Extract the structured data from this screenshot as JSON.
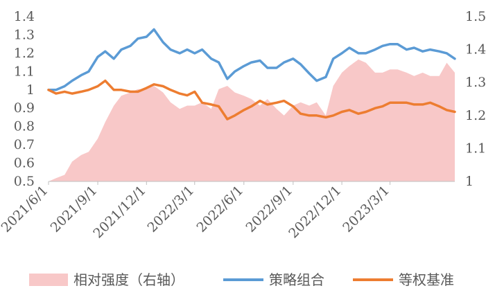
{
  "chart_data": {
    "type": "line",
    "title": "",
    "left_axis": {
      "min": 0.5,
      "max": 1.4,
      "ticks": [
        0.5,
        0.6,
        0.7,
        0.8,
        0.9,
        1,
        1.1,
        1.2,
        1.3,
        1.4
      ]
    },
    "right_axis": {
      "min": 1.0,
      "max": 1.5,
      "ticks": [
        1,
        1.1,
        1.2,
        1.3,
        1.4,
        1.5
      ]
    },
    "x_ticks": [
      "2021/6/1",
      "2021/9/1",
      "2021/12/1",
      "2022/3/1",
      "2022/6/1",
      "2022/9/1",
      "2022/12/1",
      "2023/3/1"
    ],
    "x_range": [
      "2021-06-01",
      "2023-06-30"
    ],
    "grid": false,
    "legend_position": "bottom",
    "series": [
      {
        "name": "相对强度（右轴）",
        "type": "area",
        "axis": "right",
        "color": "#F8C8C8",
        "x": [
          "2021-06-01",
          "2021-06-15",
          "2021-07-01",
          "2021-07-15",
          "2021-08-01",
          "2021-08-15",
          "2021-09-01",
          "2021-09-15",
          "2021-10-01",
          "2021-10-15",
          "2021-11-01",
          "2021-11-15",
          "2021-12-01",
          "2021-12-15",
          "2022-01-01",
          "2022-01-15",
          "2022-02-01",
          "2022-02-15",
          "2022-03-01",
          "2022-03-15",
          "2022-04-01",
          "2022-04-15",
          "2022-05-01",
          "2022-05-15",
          "2022-06-01",
          "2022-06-15",
          "2022-07-01",
          "2022-07-15",
          "2022-08-01",
          "2022-08-15",
          "2022-09-01",
          "2022-09-15",
          "2022-10-01",
          "2022-10-15",
          "2022-11-01",
          "2022-11-15",
          "2022-12-01",
          "2022-12-15",
          "2023-01-01",
          "2023-01-15",
          "2023-02-01",
          "2023-02-15",
          "2023-03-01",
          "2023-03-15",
          "2023-04-01",
          "2023-04-15",
          "2023-05-01",
          "2023-05-15",
          "2023-06-01",
          "2023-06-15",
          "2023-06-30"
        ],
        "values": [
          1.0,
          1.01,
          1.02,
          1.06,
          1.08,
          1.09,
          1.13,
          1.18,
          1.23,
          1.26,
          1.27,
          1.28,
          1.28,
          1.29,
          1.27,
          1.24,
          1.22,
          1.23,
          1.23,
          1.24,
          1.22,
          1.28,
          1.29,
          1.27,
          1.26,
          1.25,
          1.23,
          1.25,
          1.22,
          1.2,
          1.23,
          1.24,
          1.23,
          1.24,
          1.2,
          1.29,
          1.33,
          1.35,
          1.37,
          1.36,
          1.33,
          1.33,
          1.34,
          1.34,
          1.33,
          1.32,
          1.33,
          1.32,
          1.32,
          1.36,
          1.33
        ]
      },
      {
        "name": "策略组合",
        "type": "line",
        "axis": "left",
        "color": "#5B9BD5",
        "x": [
          "2021-06-01",
          "2021-06-15",
          "2021-07-01",
          "2021-07-15",
          "2021-08-01",
          "2021-08-15",
          "2021-09-01",
          "2021-09-15",
          "2021-10-01",
          "2021-10-15",
          "2021-11-01",
          "2021-11-15",
          "2021-12-01",
          "2021-12-15",
          "2022-01-01",
          "2022-01-15",
          "2022-02-01",
          "2022-02-15",
          "2022-03-01",
          "2022-03-15",
          "2022-04-01",
          "2022-04-15",
          "2022-05-01",
          "2022-05-15",
          "2022-06-01",
          "2022-06-15",
          "2022-07-01",
          "2022-07-15",
          "2022-08-01",
          "2022-08-15",
          "2022-09-01",
          "2022-09-15",
          "2022-10-01",
          "2022-10-15",
          "2022-11-01",
          "2022-11-15",
          "2022-12-01",
          "2022-12-15",
          "2023-01-01",
          "2023-01-15",
          "2023-02-01",
          "2023-02-15",
          "2023-03-01",
          "2023-03-15",
          "2023-04-01",
          "2023-04-15",
          "2023-05-01",
          "2023-05-15",
          "2023-06-01",
          "2023-06-15",
          "2023-06-30"
        ],
        "values": [
          1.0,
          1.0,
          1.02,
          1.05,
          1.08,
          1.1,
          1.18,
          1.21,
          1.17,
          1.22,
          1.24,
          1.28,
          1.29,
          1.33,
          1.26,
          1.22,
          1.2,
          1.22,
          1.2,
          1.22,
          1.17,
          1.15,
          1.06,
          1.1,
          1.13,
          1.15,
          1.16,
          1.12,
          1.12,
          1.15,
          1.17,
          1.14,
          1.09,
          1.05,
          1.07,
          1.17,
          1.2,
          1.23,
          1.2,
          1.2,
          1.22,
          1.24,
          1.25,
          1.25,
          1.22,
          1.23,
          1.21,
          1.22,
          1.21,
          1.2,
          1.17
        ]
      },
      {
        "name": "等权基准",
        "type": "line",
        "axis": "left",
        "color": "#ED7D31",
        "x": [
          "2021-06-01",
          "2021-06-15",
          "2021-07-01",
          "2021-07-15",
          "2021-08-01",
          "2021-08-15",
          "2021-09-01",
          "2021-09-15",
          "2021-10-01",
          "2021-10-15",
          "2021-11-01",
          "2021-11-15",
          "2021-12-01",
          "2021-12-15",
          "2022-01-01",
          "2022-01-15",
          "2022-02-01",
          "2022-02-15",
          "2022-03-01",
          "2022-03-15",
          "2022-04-01",
          "2022-04-15",
          "2022-05-01",
          "2022-05-15",
          "2022-06-01",
          "2022-06-15",
          "2022-07-01",
          "2022-07-15",
          "2022-08-01",
          "2022-08-15",
          "2022-09-01",
          "2022-09-15",
          "2022-10-01",
          "2022-10-15",
          "2022-11-01",
          "2022-11-15",
          "2022-12-01",
          "2022-12-15",
          "2023-01-01",
          "2023-01-15",
          "2023-02-01",
          "2023-02-15",
          "2023-03-01",
          "2023-03-15",
          "2023-04-01",
          "2023-04-15",
          "2023-05-01",
          "2023-05-15",
          "2023-06-01",
          "2023-06-15",
          "2023-06-30"
        ],
        "values": [
          1.0,
          0.98,
          0.99,
          0.98,
          0.99,
          1.0,
          1.02,
          1.05,
          1.0,
          1.0,
          0.99,
          0.99,
          1.01,
          1.03,
          1.02,
          1.0,
          0.98,
          0.97,
          0.99,
          0.93,
          0.92,
          0.91,
          0.84,
          0.86,
          0.89,
          0.91,
          0.94,
          0.92,
          0.93,
          0.94,
          0.91,
          0.87,
          0.86,
          0.86,
          0.85,
          0.86,
          0.88,
          0.89,
          0.87,
          0.88,
          0.9,
          0.91,
          0.93,
          0.93,
          0.93,
          0.92,
          0.92,
          0.93,
          0.91,
          0.89,
          0.88
        ]
      }
    ]
  }
}
